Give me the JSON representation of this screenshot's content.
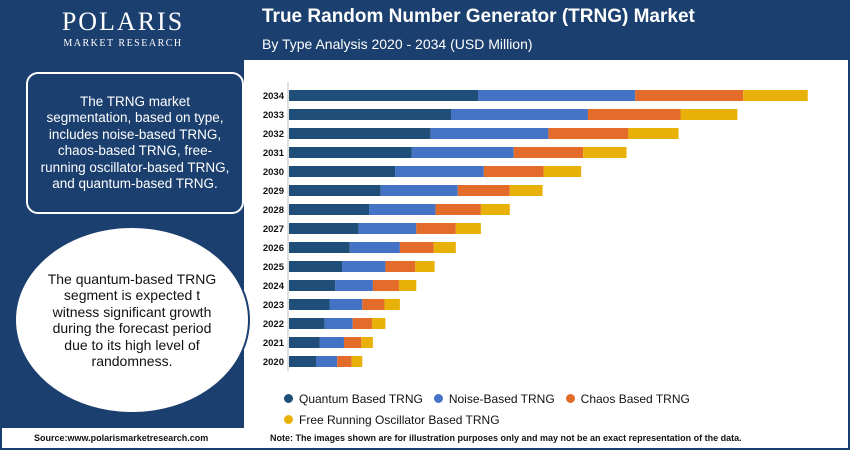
{
  "logo": {
    "name": "POLARIS",
    "sub": "MARKET RESEARCH"
  },
  "header": {
    "title": "True Random Number Generator (TRNG) Market",
    "subtitle": "By Type Analysis 2020 - 2034 (USD Million)"
  },
  "info_text": "The TRNG market segmentation, based on type, includes noise-based TRNG, chaos-based TRNG, free-running oscillator-based TRNG, and quantum-based TRNG.",
  "highlight_text": "The quantum-based TRNG segment is expected t witness significant growth during the forecast period due to its high level of randomness.",
  "source": "Source:www.polarismarketresearch.com",
  "note": "Note: The images shown are for illustration purposes only and may not be an exact representation of the data.",
  "colors": {
    "brand": "#1b3f6e",
    "quantum": "#1f4e79",
    "noise": "#4472c4",
    "chaos": "#e46c2a",
    "oscillator": "#e7b10a"
  },
  "chart_data": {
    "type": "bar",
    "orientation": "horizontal",
    "stacked": true,
    "title": "True Random Number Generator (TRNG) Market",
    "subtitle": "By Type Analysis 2020 - 2034 (USD Million)",
    "categories": [
      "2034",
      "2033",
      "2032",
      "2031",
      "2030",
      "2029",
      "2028",
      "2027",
      "2026",
      "2025",
      "2024",
      "2023",
      "2022",
      "2021",
      "2020"
    ],
    "series": [
      {
        "name": "Quantum Based TRNG",
        "color": "#1f4e79",
        "values": [
          196,
          168,
          147,
          127,
          110,
          95,
          83,
          72,
          63,
          55,
          48,
          42,
          37,
          32,
          28
        ]
      },
      {
        "name": "Noise-Based TRNG",
        "color": "#4472c4",
        "values": [
          163,
          142,
          122,
          106,
          92,
          80,
          69,
          60,
          52,
          45,
          39,
          34,
          29,
          25,
          22
        ]
      },
      {
        "name": "Chaos Based TRNG",
        "color": "#e46c2a",
        "values": [
          112,
          96,
          83,
          72,
          62,
          54,
          47,
          41,
          35,
          31,
          27,
          23,
          20,
          18,
          15
        ]
      },
      {
        "name": "Free Running Oscillator Based TRNG",
        "color": "#e7b10a",
        "values": [
          67,
          59,
          52,
          45,
          39,
          34,
          30,
          26,
          23,
          20,
          18,
          16,
          14,
          12,
          11
        ]
      }
    ],
    "xlim": [
      0,
      560
    ],
    "grid": false,
    "legend": "bottom"
  }
}
